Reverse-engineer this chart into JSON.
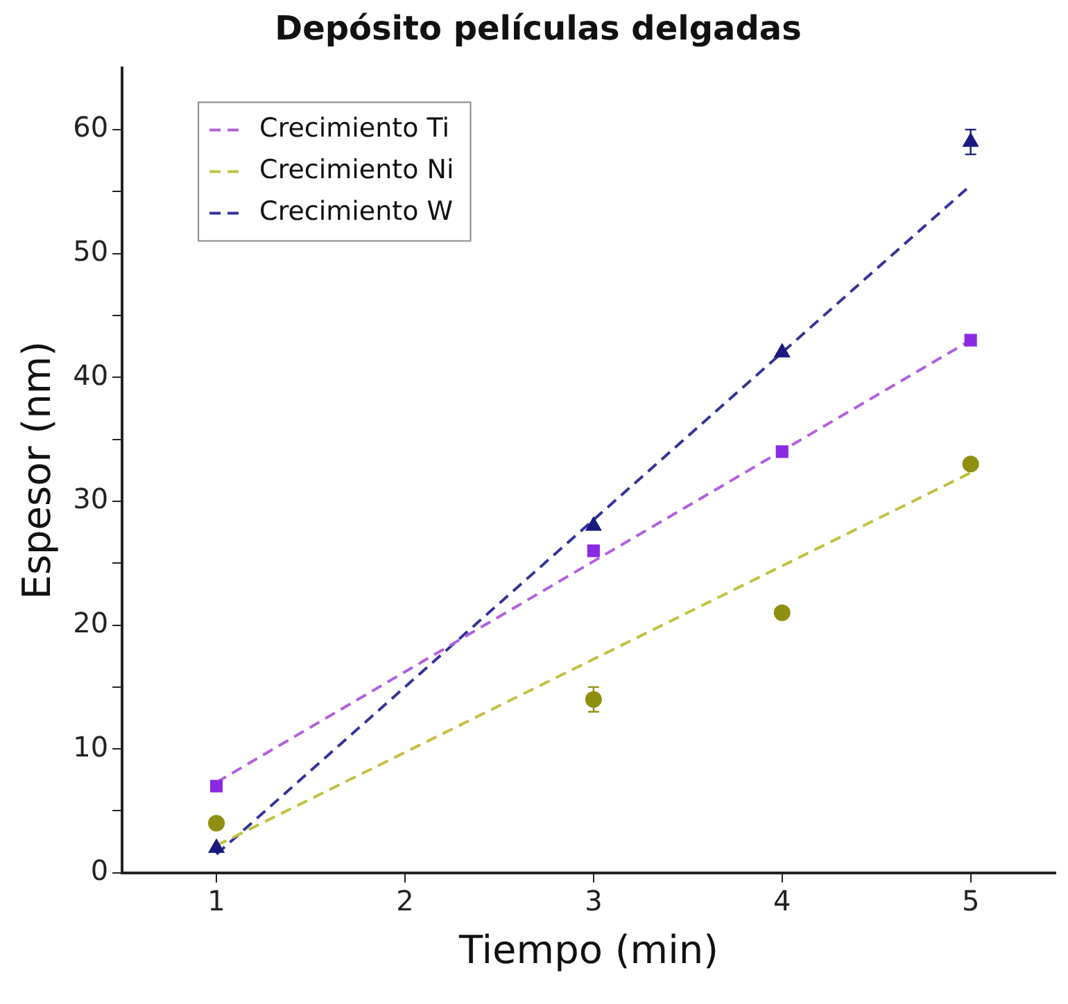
{
  "chart_data": {
    "type": "scatter",
    "title": "Depósito películas delgadas",
    "xlabel": "Tiempo (min)",
    "ylabel": "Espesor (nm)",
    "xlim": [
      0.5,
      5.45
    ],
    "xticks": [
      1,
      2,
      3,
      4,
      5
    ],
    "ylim": [
      0,
      65
    ],
    "yticks": [
      0,
      {
        "value": 5,
        "label": null
      },
      10,
      {
        "value": 15,
        "label": null
      },
      20,
      {
        "value": 25,
        "label": null
      },
      30,
      {
        "value": 35,
        "label": null
      },
      40,
      {
        "value": 45,
        "label": null
      },
      50,
      {
        "value": 55,
        "label": null
      },
      60
    ],
    "grid": false,
    "legend": "top left",
    "series": [
      {
        "color": "#8a2be2",
        "marker": "square",
        "x": [
          1,
          3,
          4,
          5
        ],
        "values": [
          7,
          26,
          34,
          43
        ]
      },
      {
        "color": "#8f8f10",
        "marker": "circle",
        "x": [
          1,
          3,
          4,
          5
        ],
        "values": [
          4,
          14,
          21,
          33
        ],
        "errors": [
          null,
          1,
          null,
          null
        ]
      },
      {
        "color": "#1a1a80",
        "marker": "triangle",
        "x": [
          1,
          3,
          4,
          5
        ],
        "values": [
          2,
          28,
          42,
          59
        ],
        "errors": [
          null,
          null,
          null,
          1
        ]
      },
      {
        "type": "line",
        "name": "Crecimiento Ti",
        "color": "#b060e0",
        "line_style": "dashed",
        "marker": "none",
        "x": [
          1,
          5
        ],
        "values": [
          7.3,
          43
        ]
      },
      {
        "type": "line",
        "name": "Crecimiento Ni",
        "color": "#c0c040",
        "line_style": "dashed",
        "marker": "none",
        "x": [
          1,
          5
        ],
        "values": [
          2.2,
          32.3
        ]
      },
      {
        "type": "line",
        "name": "Crecimiento W",
        "color": "#333399",
        "line_style": "dashed",
        "marker": "none",
        "x": [
          1,
          5
        ],
        "values": [
          1.5,
          55.5
        ]
      }
    ]
  }
}
